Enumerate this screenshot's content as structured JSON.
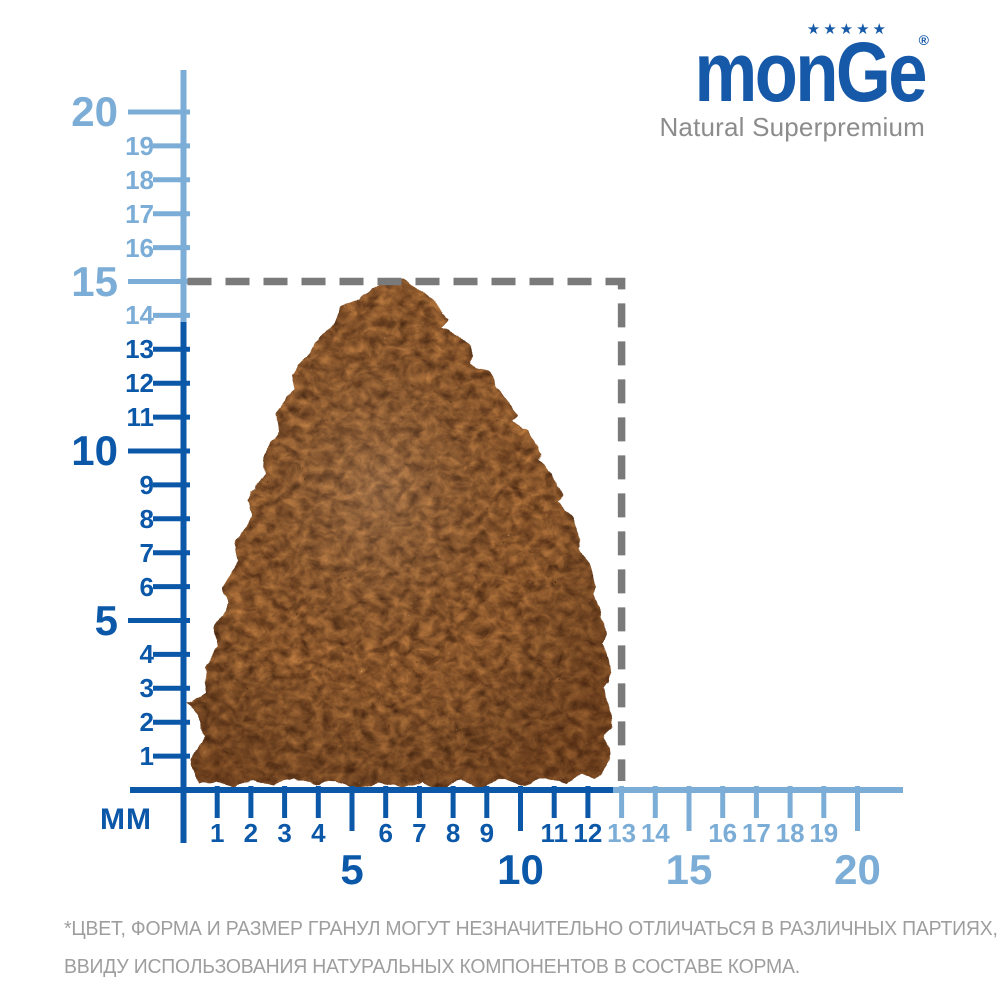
{
  "logo": {
    "brand": "monGe",
    "registered": "®",
    "stars": "★★★★★",
    "tagline": "Natural Superpremium"
  },
  "ruler": {
    "unit_label": "MM",
    "y_axis": {
      "values": [
        1,
        2,
        3,
        4,
        5,
        6,
        7,
        8,
        9,
        10,
        11,
        12,
        13,
        14,
        15,
        16,
        17,
        18,
        19,
        20
      ],
      "major_step": 5,
      "dark_up_to": 13
    },
    "x_axis": {
      "values": [
        1,
        2,
        3,
        4,
        5,
        6,
        7,
        8,
        9,
        10,
        11,
        12,
        13,
        14,
        15,
        16,
        17,
        18,
        19,
        20
      ],
      "major_step": 5,
      "dark_up_to": 12
    }
  },
  "measurement": {
    "width_mm": 13,
    "height_mm": 15
  },
  "colors": {
    "dark_blue": "#0B57A8",
    "light_blue": "#7BADD7",
    "dash_gray": "#7A7A7A",
    "logo_blue": "#1659A8",
    "tagline_gray": "#8C8C8C",
    "disclaimer_gray": "#9E9E9E",
    "kibble_brown": "#7A4A26"
  },
  "disclaimer": {
    "line1": "*ЦВЕТ, ФОРМА И РАЗМЕР ГРАНУЛ МОГУТ НЕЗНАЧИТЕЛЬНО ОТЛИЧАТЬСЯ В РАЗЛИЧНЫХ ПАРТИЯХ,",
    "line2": "ВВИДУ ИСПОЛЬЗОВАНИЯ НАТУРАЛЬНЫХ КОМПОНЕНТОВ В СОСТАВЕ КОРМА."
  }
}
